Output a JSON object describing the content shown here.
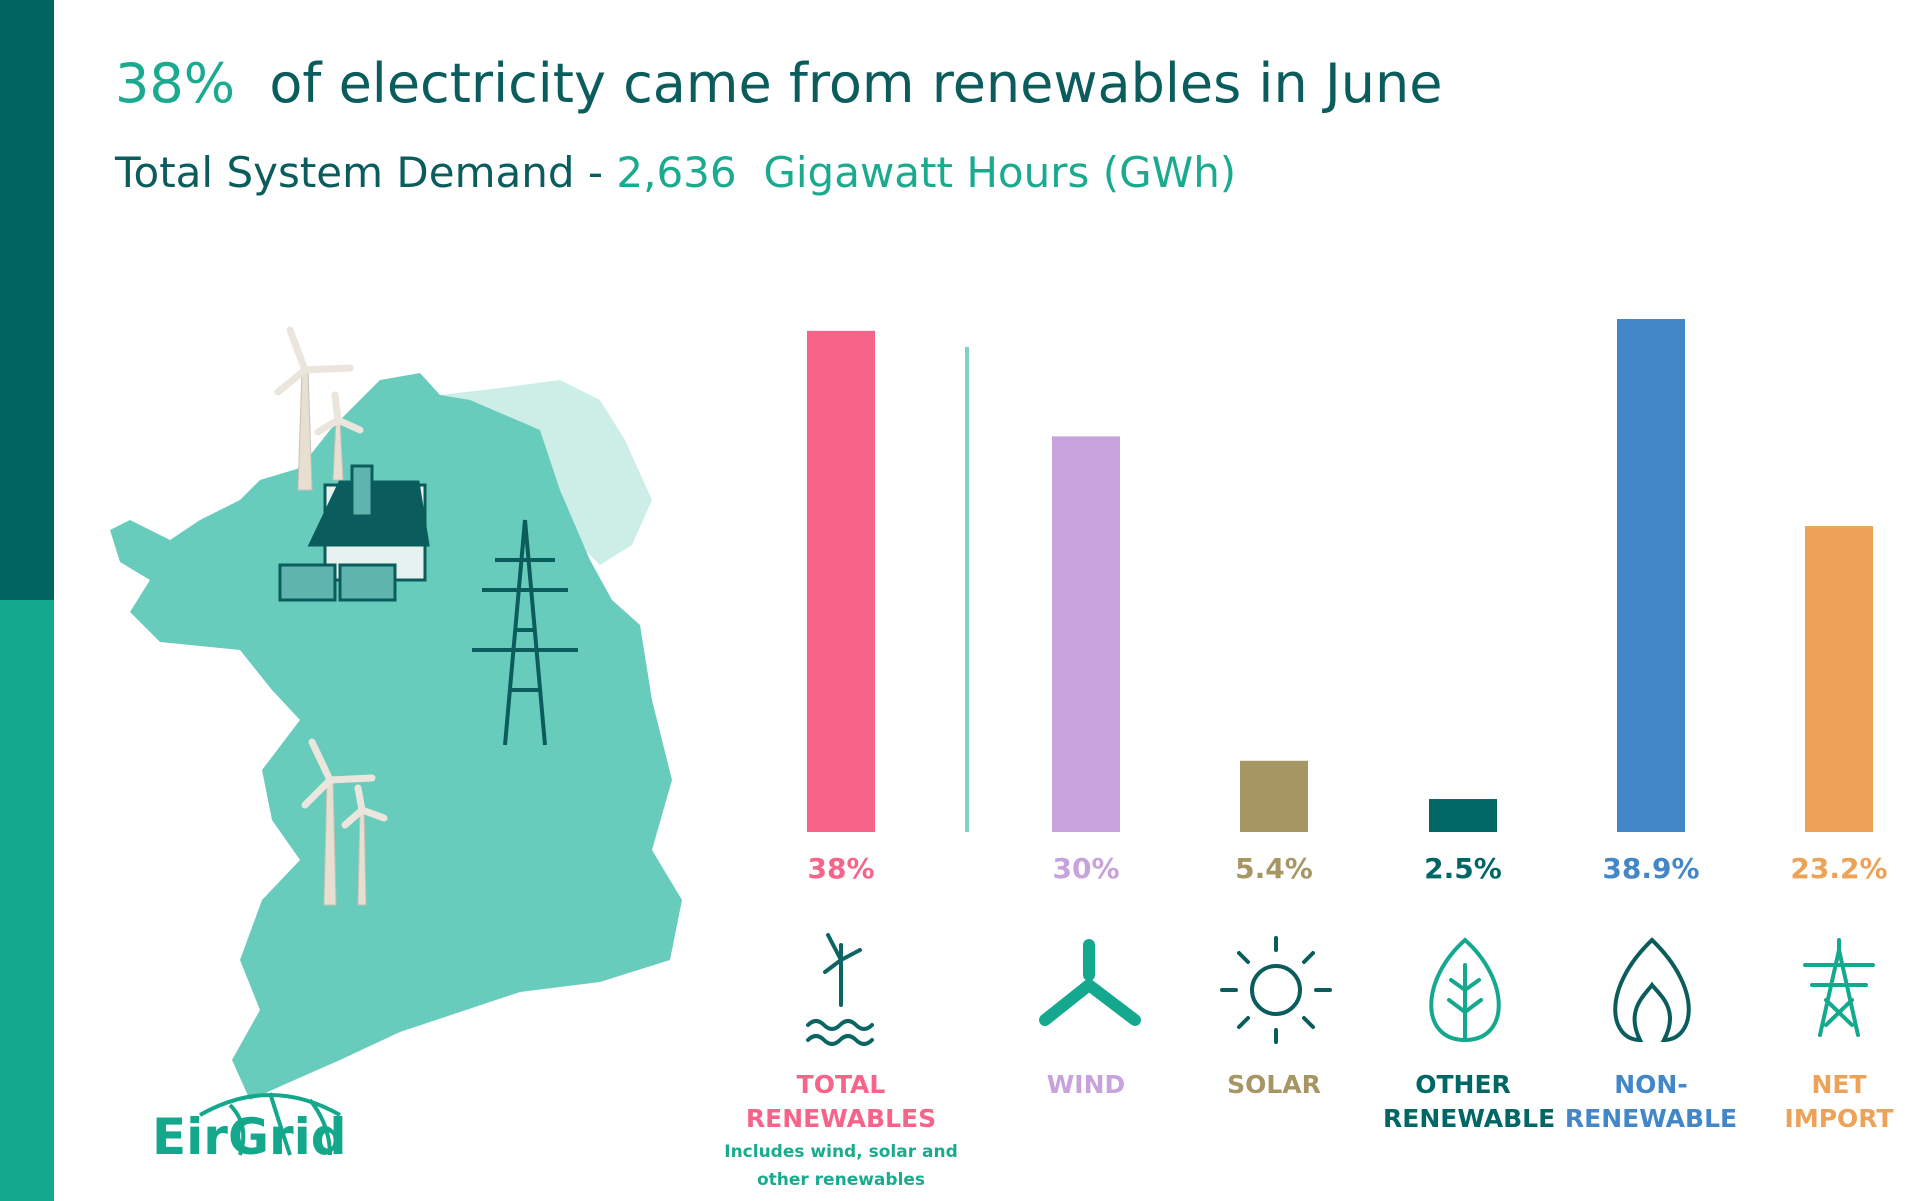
{
  "chart_data": {
    "type": "bar",
    "title_value": "38%",
    "title": "of electricity came from renewables in June",
    "subtitle": "Total System Demand -",
    "subtitle_value": "2,636",
    "subtitle_unit": "Gigawatt Hours (GWh)",
    "categories": [
      "TOTAL RENEWABLES",
      "WIND",
      "SOLAR",
      "OTHER RENEWABLE",
      "NON-RENEWABLE",
      "NET IMPORT"
    ],
    "values": [
      38,
      30,
      5.4,
      2.5,
      38.9,
      23.2
    ],
    "value_labels": [
      "38%",
      "30%",
      "5.4%",
      "2.5%",
      "38.9%",
      "23.2%"
    ],
    "colors": [
      "#f7648a",
      "#c8a2da",
      "#a69663",
      "#006666",
      "#4487c9",
      "#eca257"
    ],
    "note": "Includes wind, solar and other renewables"
  },
  "logo": "EirGrid"
}
